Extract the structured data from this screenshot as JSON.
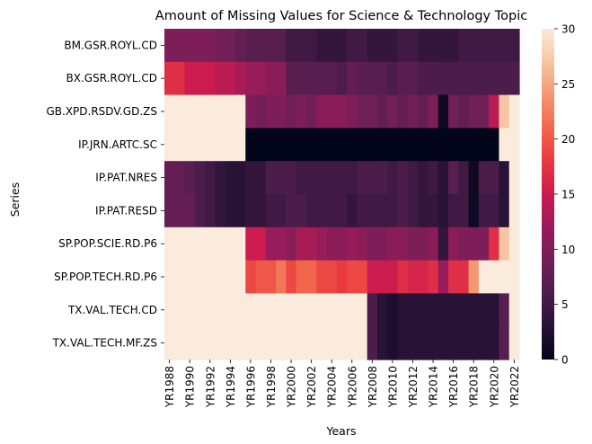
{
  "chart_data": {
    "type": "heatmap",
    "title": "Amount of Missing Values for Science & Technology Topic",
    "xlabel": "Years",
    "ylabel": "Series",
    "rows": [
      "BM.GSR.ROYL.CD",
      "BX.GSR.ROYL.CD",
      "GB.XPD.RSDV.GD.ZS",
      "IP.JRN.ARTC.SC",
      "IP.PAT.NRES",
      "IP.PAT.RESD",
      "SP.POP.SCIE.RD.P6",
      "SP.POP.TECH.RD.P6",
      "TX.VAL.TECH.CD",
      "TX.VAL.TECH.MF.ZS"
    ],
    "columns": [
      "YR1988",
      "YR1989",
      "YR1990",
      "YR1991",
      "YR1992",
      "YR1993",
      "YR1994",
      "YR1995",
      "YR1996",
      "YR1997",
      "YR1998",
      "YR1999",
      "YR2000",
      "YR2001",
      "YR2002",
      "YR2003",
      "YR2004",
      "YR2005",
      "YR2006",
      "YR2007",
      "YR2008",
      "YR2009",
      "YR2010",
      "YR2011",
      "YR2012",
      "YR2013",
      "YR2014",
      "YR2015",
      "YR2016",
      "YR2017",
      "YR2018",
      "YR2019",
      "YR2020",
      "YR2021",
      "YR2022"
    ],
    "x_tick_labels": [
      "YR1988",
      "YR1990",
      "YR1992",
      "YR1994",
      "YR1996",
      "YR1998",
      "YR2000",
      "YR2002",
      "YR2004",
      "YR2006",
      "YR2008",
      "YR2010",
      "YR2012",
      "YR2014",
      "YR2016",
      "YR2018",
      "YR2020",
      "YR2022"
    ],
    "values": [
      [
        10,
        10,
        10,
        10,
        10,
        9,
        9,
        8,
        7,
        7,
        7,
        7,
        5,
        5,
        5,
        4,
        4,
        4,
        5,
        5,
        4,
        4,
        4,
        5,
        5,
        4,
        4,
        4,
        4,
        5,
        5,
        5,
        5,
        5,
        5
      ],
      [
        17,
        17,
        15,
        15,
        15,
        14,
        14,
        13,
        12,
        12,
        11,
        11,
        7,
        7,
        7,
        7,
        7,
        6,
        8,
        7,
        7,
        7,
        6,
        7,
        7,
        6,
        6,
        6,
        6,
        6,
        6,
        6,
        6,
        6,
        6
      ],
      [
        30,
        30,
        30,
        30,
        30,
        30,
        30,
        30,
        10,
        9,
        10,
        10,
        9,
        10,
        9,
        11,
        11,
        11,
        10,
        9,
        9,
        8,
        9,
        8,
        9,
        8,
        10,
        1,
        9,
        8,
        9,
        9,
        14,
        27,
        30
      ],
      [
        30,
        30,
        30,
        30,
        30,
        30,
        30,
        30,
        0,
        0,
        0,
        0,
        0,
        0,
        0,
        0,
        0,
        0,
        0,
        0,
        0,
        0,
        0,
        0,
        0,
        0,
        0,
        0,
        0,
        0,
        0,
        0,
        0,
        30,
        30
      ],
      [
        8,
        8,
        7,
        6,
        5,
        4,
        3,
        3,
        4,
        4,
        6,
        6,
        6,
        5,
        5,
        5,
        5,
        5,
        5,
        6,
        6,
        6,
        5,
        6,
        5,
        4,
        5,
        3,
        7,
        5,
        1,
        6,
        6,
        3,
        30
      ],
      [
        8,
        8,
        8,
        6,
        5,
        4,
        3,
        3,
        4,
        4,
        5,
        5,
        6,
        6,
        5,
        5,
        5,
        5,
        4,
        5,
        5,
        5,
        5,
        6,
        5,
        4,
        4,
        3,
        5,
        5,
        1,
        5,
        5,
        3,
        30
      ],
      [
        30,
        30,
        30,
        30,
        30,
        30,
        30,
        30,
        15,
        15,
        12,
        12,
        11,
        13,
        13,
        12,
        11,
        11,
        12,
        11,
        10,
        10,
        11,
        11,
        10,
        10,
        11,
        4,
        11,
        10,
        10,
        10,
        17,
        27,
        30
      ],
      [
        30,
        30,
        30,
        30,
        30,
        30,
        30,
        30,
        19,
        20,
        20,
        22,
        19,
        21,
        21,
        19,
        19,
        18,
        19,
        19,
        15,
        15,
        15,
        17,
        16,
        16,
        17,
        12,
        17,
        17,
        24,
        30,
        30,
        30,
        30
      ],
      [
        30,
        30,
        30,
        30,
        30,
        30,
        30,
        30,
        30,
        30,
        30,
        30,
        30,
        30,
        30,
        30,
        30,
        30,
        30,
        30,
        6,
        3,
        2,
        3,
        3,
        3,
        3,
        3,
        3,
        3,
        3,
        3,
        3,
        7,
        30
      ],
      [
        30,
        30,
        30,
        30,
        30,
        30,
        30,
        30,
        30,
        30,
        30,
        30,
        30,
        30,
        30,
        30,
        30,
        30,
        30,
        30,
        6,
        3,
        2,
        3,
        3,
        3,
        3,
        3,
        3,
        3,
        3,
        3,
        3,
        7,
        30
      ]
    ],
    "colorbar": {
      "min": 0,
      "max": 30,
      "ticks": [
        0,
        5,
        10,
        15,
        20,
        25,
        30
      ],
      "colormap": "rocket"
    },
    "grid": false
  }
}
